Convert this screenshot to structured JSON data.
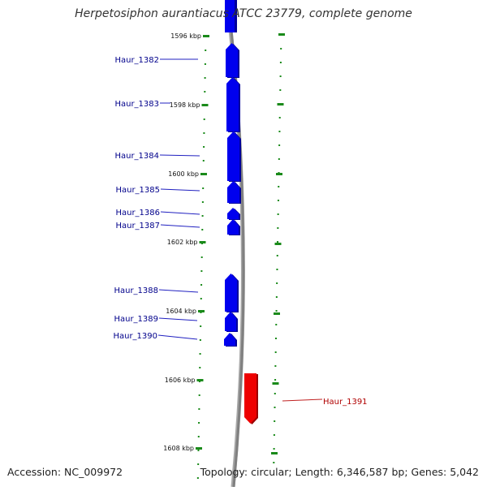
{
  "title": "Herpetosiphon aurantiacus ATCC 23779, complete genome",
  "footer": {
    "accession": "Accession: NC_009972",
    "stats": "Topology: circular; Length: 6,346,587 bp; Genes: 5,042"
  },
  "colors": {
    "forward_gene": "#0000ee",
    "reverse_gene": "#ee0000",
    "forward_label": "#00008b",
    "reverse_label": "#b00000",
    "tick": "#1a8a1a",
    "backbone": "#808080"
  },
  "scale_ticks": [
    {
      "label": "1596 kbp"
    },
    {
      "label": "1598 kbp"
    },
    {
      "label": "1600 kbp"
    },
    {
      "label": "1602 kbp"
    },
    {
      "label": "1604 kbp"
    },
    {
      "label": "1606 kbp"
    },
    {
      "label": "1608 kbp"
    }
  ],
  "genes": [
    {
      "name": "Haur_1382",
      "strand": "+"
    },
    {
      "name": "Haur_1383",
      "strand": "+"
    },
    {
      "name": "Haur_1384",
      "strand": "+"
    },
    {
      "name": "Haur_1385",
      "strand": "+"
    },
    {
      "name": "Haur_1386",
      "strand": "+"
    },
    {
      "name": "Haur_1387",
      "strand": "+"
    },
    {
      "name": "Haur_1388",
      "strand": "+"
    },
    {
      "name": "Haur_1389",
      "strand": "+"
    },
    {
      "name": "Haur_1390",
      "strand": "+"
    },
    {
      "name": "Haur_1391",
      "strand": "-"
    }
  ]
}
